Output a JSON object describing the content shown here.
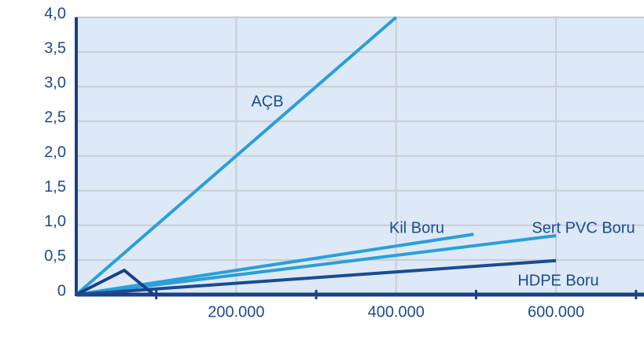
{
  "chart_data": {
    "type": "line",
    "xlim": [
      0,
      710000
    ],
    "ylim": [
      0,
      4
    ],
    "xticks": [
      {
        "value": 200000,
        "label": "200.000"
      },
      {
        "value": 400000,
        "label": "400.000"
      },
      {
        "value": 600000,
        "label": "600.000"
      }
    ],
    "xminorticks": [
      100000,
      300000,
      500000,
      700000
    ],
    "yticks": [
      0,
      {
        "value": 0.5,
        "label": "0,5"
      },
      {
        "value": 1,
        "label": "1,0"
      },
      {
        "value": 1.5,
        "label": "1,5"
      },
      {
        "value": 2,
        "label": "2,0"
      },
      {
        "value": 2.5,
        "label": "2,5"
      },
      {
        "value": 3,
        "label": "3,0"
      },
      {
        "value": 3.5,
        "label": "3,5"
      },
      {
        "value": 4,
        "label": "4,0"
      }
    ],
    "grid": true,
    "series": [
      {
        "name": "AÇB",
        "color": "#2a9fd8",
        "x": [
          0,
          400000
        ],
        "values": [
          0,
          4
        ]
      },
      {
        "name": "Kil Boru",
        "color": "#2a9fd8",
        "x": [
          0,
          497000
        ],
        "values": [
          0,
          0.87
        ]
      },
      {
        "name": "Sert PVC Boru",
        "color": "#2a9fd8",
        "x": [
          0,
          600000
        ],
        "values": [
          0,
          0.85
        ]
      },
      {
        "name": "HDPE Boru",
        "color": "#1b4b91",
        "x": [
          0,
          600000
        ],
        "values": [
          0,
          0.49
        ]
      },
      {
        "color": "#1b3f85",
        "x": [
          0,
          60000,
          97000
        ],
        "values": [
          0,
          0.35,
          0
        ]
      }
    ]
  }
}
